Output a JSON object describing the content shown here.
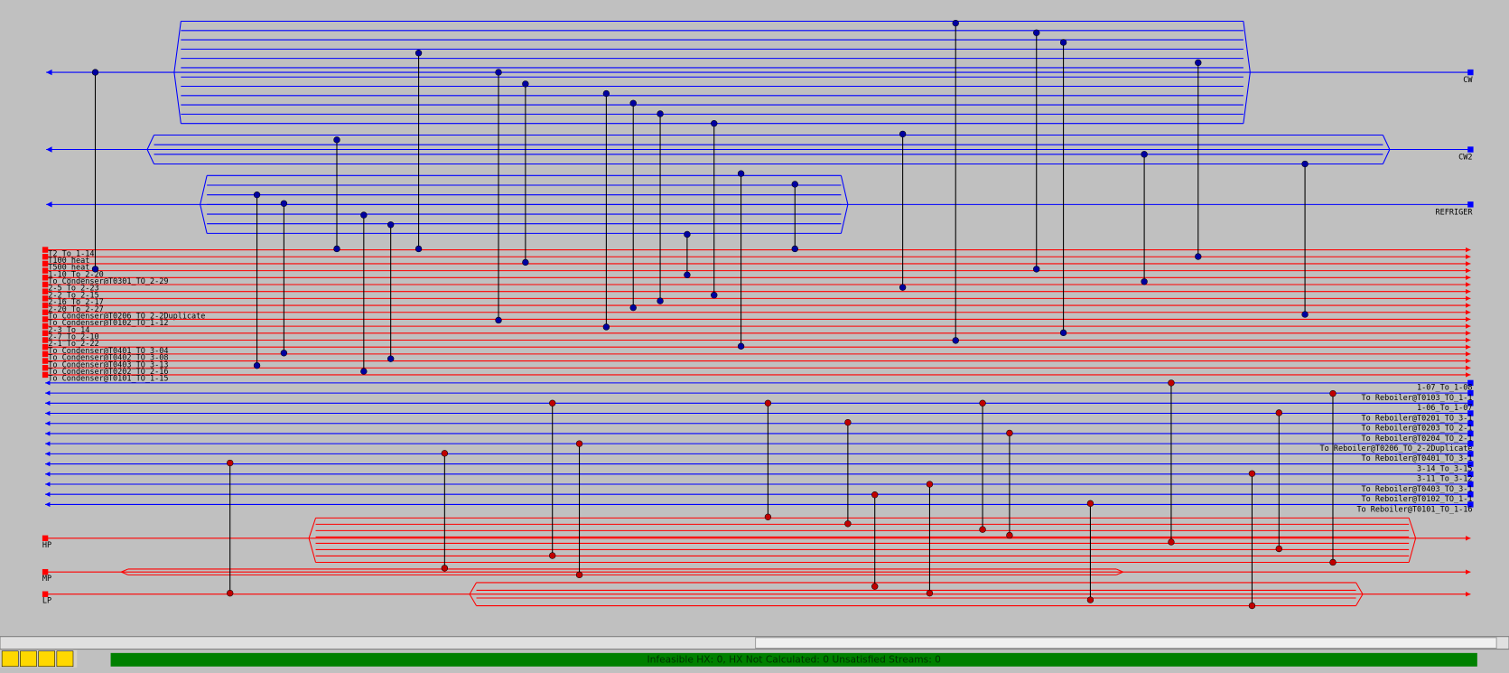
{
  "utility_cold": [
    "CW",
    "CW2",
    "REFRIGER"
  ],
  "hot_streams": [
    "T2_To_1-14",
    "T100_heat",
    "T500_heat",
    "1-10_To_2-20",
    "To Condenser@T0301_TO_2-29",
    "2-5_To_2-23",
    "2-2_To_2-15",
    "2-16_To_2-17",
    "2-20_To_2-27",
    "To Condenser@T0206_TO_2-2Duplicate",
    "To Condenser@T0102_TO_1-12",
    "2-3_To_14",
    "2-7_To_2-10",
    "2-1_To_2-22",
    "To Condenser@T0401_TO_3-04",
    "To Condenser@T0402_TO_3-08",
    "To Condenser@T0403_TO_3-13",
    "To Condenser@T0202_TO_2-16",
    "To Condenser@T0101_TO_1-15"
  ],
  "cold_streams": [
    "1-07_To_1-08",
    "To Reboiler@T0103_TO_1-1",
    "1-06_To_1-07",
    "To Reboiler@T0201_TO_3-1",
    "To Reboiler@T0203_TO_2-1",
    "To Reboiler@T0204_TO_2-1",
    "To Reboiler@T0206_TO_2-2Duplicate",
    "To Reboiler@T0401_TO_3-1",
    "3-14_To_3-15",
    "3-11_To_3-12",
    "To Reboiler@T0403_TO_3-1",
    "To Reboiler@T0102_TO_1-1",
    "To Reboiler@T0101_TO_1-16"
  ],
  "utility_hot": [
    "HP",
    "MP",
    "LP"
  ],
  "status": "Infeasible HX: 0, HX Not Calculated: 0      Unsatisfied Streams: 0"
}
